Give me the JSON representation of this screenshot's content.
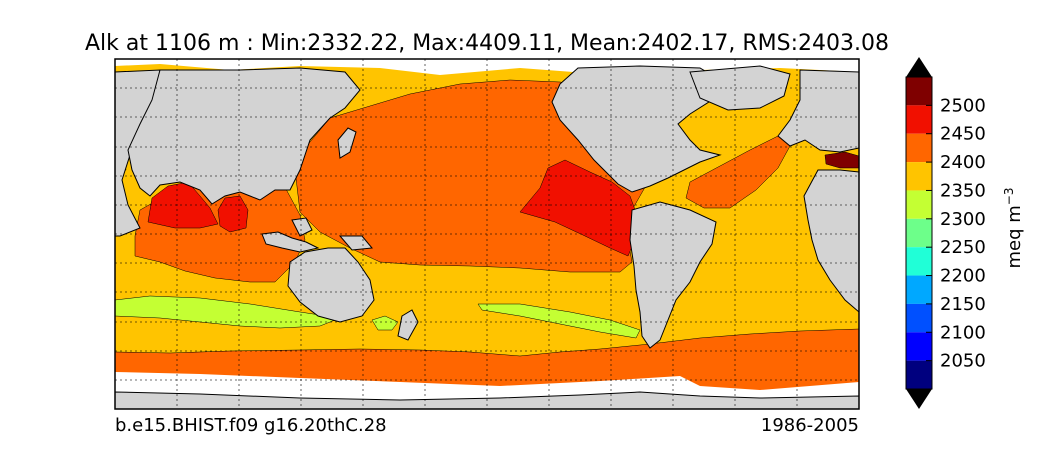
{
  "title": "Alk at 1106 m : Min:2332.22, Max:4409.11, Mean:2402.17, RMS:2403.08",
  "footer": {
    "case_name": "b.e15.BHIST.f09 g16.20thC.28",
    "period": "1986-2005"
  },
  "colorbar": {
    "label_main": "meq m",
    "label_exponent": "−3",
    "min": 2000,
    "max": 2550,
    "tick_values": [
      2050,
      2100,
      2150,
      2200,
      2250,
      2300,
      2350,
      2400,
      2450,
      2500
    ],
    "tick_labels": [
      "2050",
      "2100",
      "2150",
      "2200",
      "2250",
      "2300",
      "2350",
      "2400",
      "2450",
      "2500"
    ],
    "extend": "both",
    "colors": [
      "#00007f",
      "#0000ff",
      "#0050ff",
      "#00a8ff",
      "#20ffd7",
      "#6dff8a",
      "#c4ff33",
      "#ffc400",
      "#ff6600",
      "#f11000",
      "#7f0000"
    ]
  },
  "map": {
    "land_color": "#d3d3d3",
    "missing_color": "#ffffff",
    "gridlines": "dotted"
  }
}
